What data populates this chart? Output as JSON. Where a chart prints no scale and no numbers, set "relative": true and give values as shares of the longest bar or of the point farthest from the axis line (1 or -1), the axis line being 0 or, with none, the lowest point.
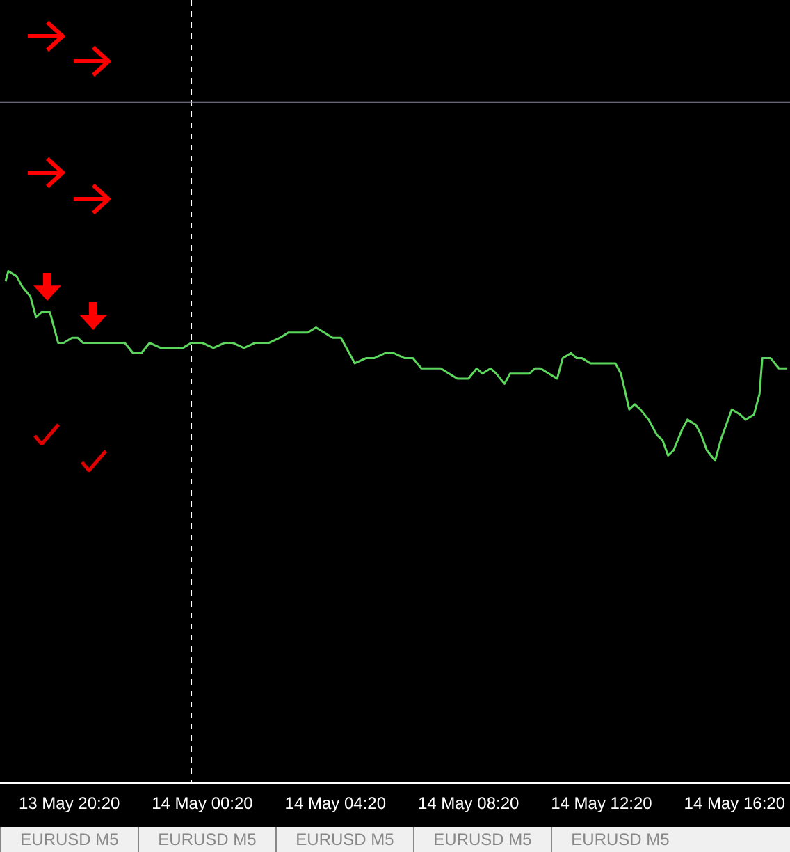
{
  "chart_data": {
    "type": "line",
    "relative": true,
    "legend": false,
    "grid": false,
    "marker": "none",
    "line_style": "solid",
    "x": [
      "--05-13T18:25",
      "--05-13T18:30",
      "--05-13T18:45",
      "--05-13T18:55",
      "--05-13T19:10",
      "--05-13T19:20",
      "--05-13T19:30",
      "--05-13T19:45",
      "--05-13T20:00",
      "--05-13T20:10",
      "--05-13T20:25",
      "--05-13T20:35",
      "--05-13T20:45",
      "--05-13T21:00",
      "--05-13T21:15",
      "--05-13T21:40",
      "--05-13T22:00",
      "--05-13T22:15",
      "--05-13T22:30",
      "--05-13T22:45",
      "--05-13T23:05",
      "--05-13T23:25",
      "--05-13T23:45",
      "--05-14T00:00",
      "--05-14T00:20",
      "--05-14T00:40",
      "--05-14T01:00",
      "--05-14T01:15",
      "--05-14T01:35",
      "--05-14T01:55",
      "--05-14T02:10",
      "--05-14T02:20",
      "--05-14T02:40",
      "--05-14T02:55",
      "--05-14T03:15",
      "--05-14T03:30",
      "--05-14T03:45",
      "--05-14T04:00",
      "--05-14T04:15",
      "--05-14T04:30",
      "--05-14T04:45",
      "--05-14T04:55",
      "--05-14T05:15",
      "--05-14T05:30",
      "--05-14T05:50",
      "--05-14T06:05",
      "--05-14T06:25",
      "--05-14T06:40",
      "--05-14T06:55",
      "--05-14T07:15",
      "--05-14T07:30",
      "--05-14T07:45",
      "--05-14T08:00",
      "--05-14T08:20",
      "--05-14T08:35",
      "--05-14T08:45",
      "--05-14T09:00",
      "--05-14T09:10",
      "--05-14T09:25",
      "--05-14T09:35",
      "--05-14T09:45",
      "--05-14T10:10",
      "--05-14T10:20",
      "--05-14T10:30",
      "--05-14T10:45",
      "--05-14T11:00",
      "--05-14T11:10",
      "--05-14T11:25",
      "--05-14T11:35",
      "--05-14T11:45",
      "--05-14T12:00",
      "--05-14T12:15",
      "--05-14T12:30",
      "--05-14T12:45",
      "--05-14T12:55",
      "--05-14T13:10",
      "--05-14T13:20",
      "--05-14T13:30",
      "--05-14T13:45",
      "--05-14T14:00",
      "--05-14T14:10",
      "--05-14T14:20",
      "--05-14T14:30",
      "--05-14T14:45",
      "--05-14T14:55",
      "--05-14T15:10",
      "--05-14T15:20",
      "--05-14T15:30",
      "--05-14T15:45",
      "--05-14T15:55",
      "--05-14T16:05",
      "--05-14T16:15",
      "--05-14T16:30",
      "--05-14T16:40",
      "--05-14T16:55",
      "--05-14T17:05",
      "--05-14T17:10",
      "--05-14T17:25",
      "--05-14T17:40",
      "--05-14T17:55"
    ],
    "series": [
      {
        "color": "#5cd65c",
        "values": [
          0.98,
          1.0,
          0.99,
          0.97,
          0.95,
          0.91,
          0.92,
          0.92,
          0.86,
          0.86,
          0.87,
          0.87,
          0.86,
          0.86,
          0.86,
          0.86,
          0.86,
          0.84,
          0.84,
          0.86,
          0.85,
          0.85,
          0.85,
          0.86,
          0.86,
          0.85,
          0.86,
          0.86,
          0.85,
          0.86,
          0.86,
          0.86,
          0.87,
          0.88,
          0.88,
          0.88,
          0.89,
          0.88,
          0.87,
          0.87,
          0.84,
          0.82,
          0.83,
          0.83,
          0.84,
          0.84,
          0.83,
          0.83,
          0.81,
          0.81,
          0.81,
          0.8,
          0.79,
          0.79,
          0.81,
          0.8,
          0.81,
          0.8,
          0.78,
          0.8,
          0.8,
          0.8,
          0.81,
          0.81,
          0.8,
          0.79,
          0.83,
          0.84,
          0.83,
          0.83,
          0.82,
          0.82,
          0.82,
          0.82,
          0.8,
          0.73,
          0.74,
          0.73,
          0.71,
          0.68,
          0.67,
          0.64,
          0.65,
          0.69,
          0.71,
          0.7,
          0.68,
          0.65,
          0.63,
          0.67,
          0.7,
          0.73,
          0.72,
          0.71,
          0.72,
          0.76,
          0.83,
          0.83,
          0.81,
          0.81
        ]
      }
    ],
    "xlim": [
      "--05-13T18:15",
      "--05-14T18:00"
    ],
    "xticks": [
      {
        "value": "--05-13T20:20",
        "label": "13 May 20:20"
      },
      {
        "value": "--05-14T00:20",
        "label": "14 May 00:20"
      },
      {
        "value": "--05-14T04:20",
        "label": "14 May 04:20"
      },
      {
        "value": "--05-14T08:20",
        "label": "14 May 08:20"
      },
      {
        "value": "--05-14T12:20",
        "label": "14 May 12:20"
      },
      {
        "value": "--05-14T16:20",
        "label": "14 May 16:20"
      }
    ],
    "ref_lines": [
      {
        "axis": "x",
        "value": "--05-14T00:00",
        "color": "#ffffff",
        "line_style": "dashed"
      },
      {
        "axis": "y",
        "value": 1.33,
        "color": "#8c8c9c",
        "line_style": "solid"
      }
    ],
    "annotations": [
      "EURUSD M5",
      "EURUSD M5",
      "EURUSD M5",
      "EURUSD M5",
      "EURUSD M5"
    ]
  }
}
